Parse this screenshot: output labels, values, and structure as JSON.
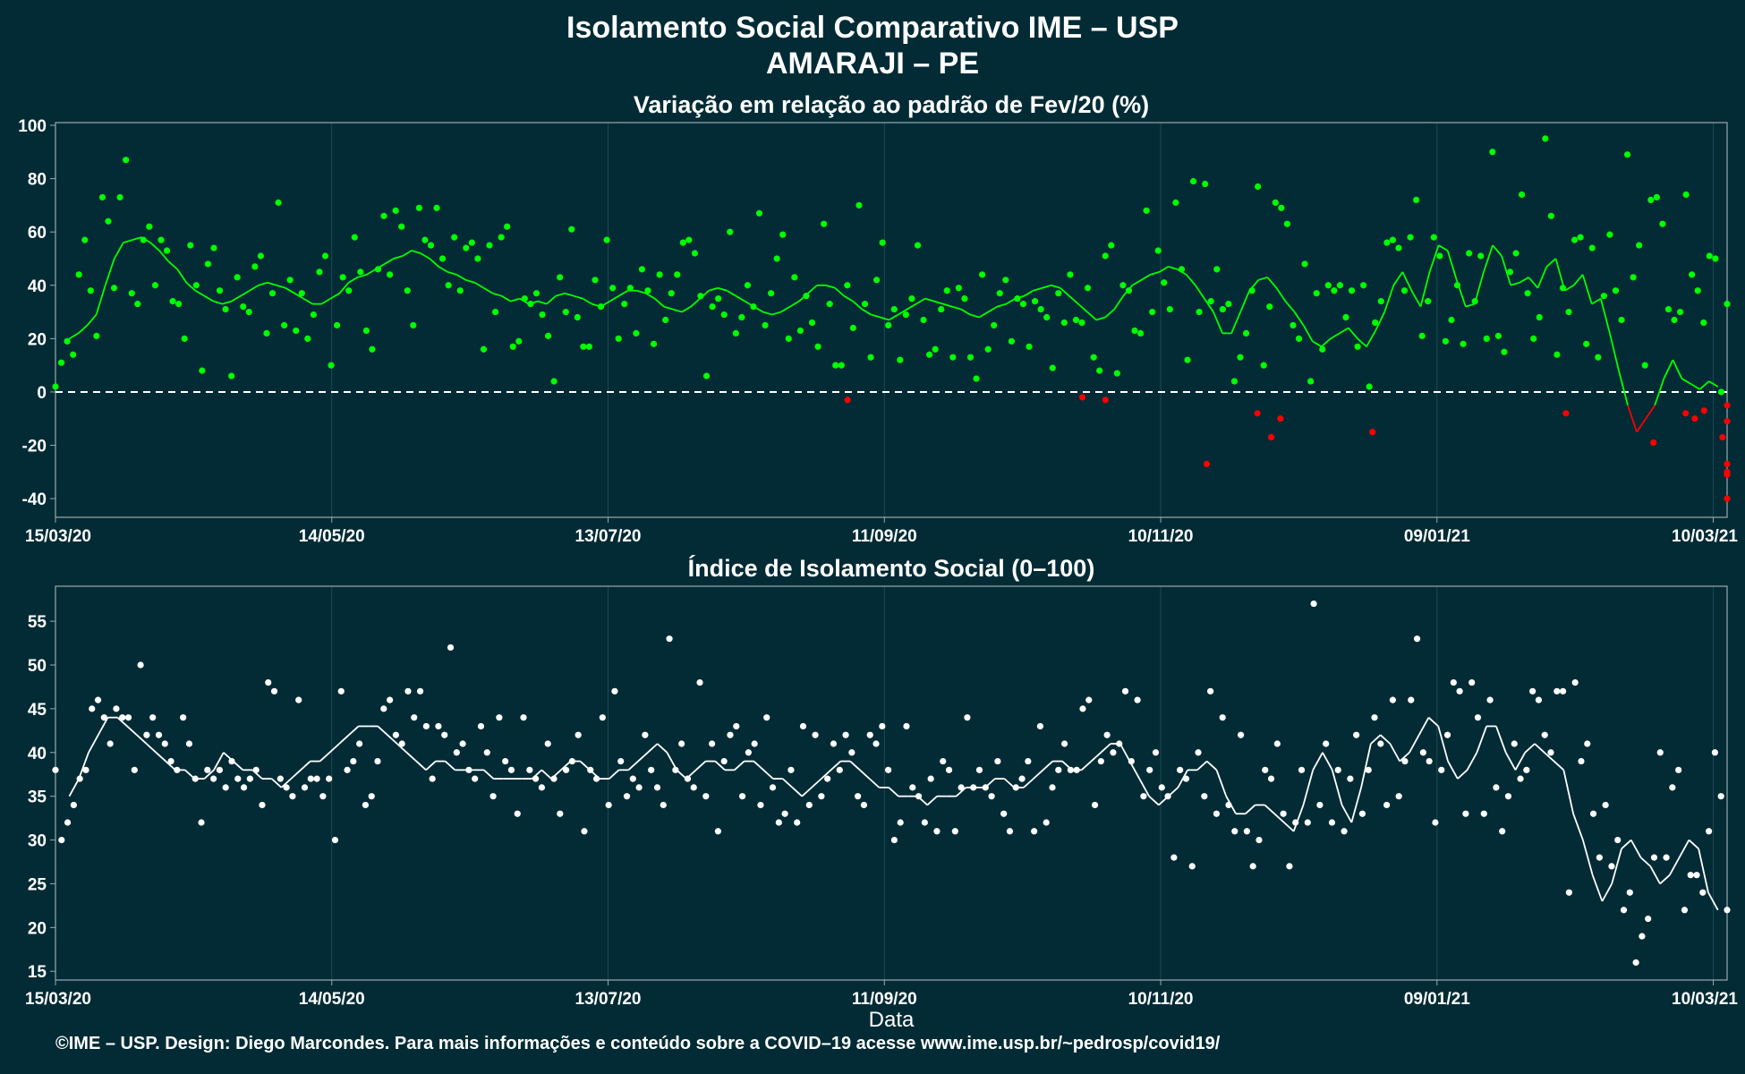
{
  "title_line1": "Isolamento Social Comparativo IME – USP",
  "title_line2": "AMARAJI – PE",
  "footer": "©IME – USP. Design: Diego Marcondes. Para mais informações e conteúdo sobre a COVID–19 acesse www.ime.usp.br/~pedrosp/covid19/",
  "colors": {
    "background": "#022b35",
    "positive": "#00ff00",
    "negative": "#ff0000",
    "neutral": "#ffffff",
    "grid": "#1f4a52",
    "frame": "#9aaaad"
  },
  "chart_data": [
    {
      "type": "scatter",
      "title": "Variação em relação ao padrão de Fev/20 (%)",
      "xlabel": "",
      "ylabel": "",
      "x_ticks": [
        "15/03/20",
        "14/05/20",
        "13/07/20",
        "11/09/20",
        "10/11/20",
        "09/01/21",
        "10/03/21"
      ],
      "x_range": [
        "15/03/20",
        "13/03/21"
      ],
      "ylim": [
        -47,
        101
      ],
      "y_ticks": [
        -40,
        -20,
        0,
        20,
        40,
        60,
        80,
        100
      ],
      "reference_line": 0,
      "grid": true,
      "series": [
        {
          "kind": "points",
          "values": [
            2,
            11,
            19,
            14,
            44,
            57,
            38,
            21,
            73,
            64,
            39,
            73,
            87,
            37,
            33,
            57,
            62,
            40,
            57,
            53,
            34,
            33,
            20,
            55,
            40,
            8,
            48,
            54,
            38,
            31,
            6,
            43,
            32,
            30,
            47,
            51,
            22,
            37,
            71,
            25,
            42,
            23,
            37,
            20,
            29,
            45,
            51,
            10,
            25,
            43,
            38,
            58,
            45,
            23,
            16,
            46,
            66,
            44,
            68,
            62,
            38,
            25,
            69,
            57,
            55,
            69,
            50,
            40,
            58,
            38,
            54,
            56,
            50,
            16,
            55,
            30,
            58,
            62,
            17,
            19,
            35,
            33,
            37,
            29,
            21,
            4,
            43,
            30,
            61,
            28,
            17,
            17,
            42,
            32,
            57,
            39,
            20,
            33,
            39,
            22,
            46,
            38,
            18,
            44,
            27,
            37,
            44,
            56,
            57,
            52,
            36,
            6,
            32,
            35,
            29,
            60,
            22,
            28,
            40,
            32,
            67,
            25,
            37,
            50,
            59,
            20,
            43,
            23,
            36,
            26,
            17,
            63,
            33,
            10,
            10,
            40,
            24,
            70,
            33,
            13,
            42,
            56,
            25,
            31,
            12,
            29,
            35,
            55,
            27,
            14,
            16,
            31,
            38,
            13,
            39,
            35,
            13,
            5,
            44,
            16,
            25,
            37,
            42,
            19,
            35,
            33,
            17,
            34,
            31,
            28,
            9,
            37,
            26,
            44,
            27,
            26,
            39,
            13,
            8,
            51,
            55,
            7,
            40,
            38,
            23,
            22,
            68,
            30,
            53,
            41,
            31,
            71,
            46,
            12,
            79,
            30,
            78,
            34,
            46,
            31,
            33,
            4,
            13,
            22,
            38,
            77,
            10,
            32,
            71,
            69,
            63,
            25,
            20,
            48,
            4,
            37,
            16,
            40,
            38,
            40,
            28,
            38,
            17,
            40,
            2,
            26,
            34,
            56,
            57,
            54,
            38,
            58,
            72,
            21,
            34,
            58,
            51,
            19,
            27,
            40,
            18,
            52,
            34,
            51,
            20,
            90,
            21,
            15,
            45,
            52,
            74,
            37,
            20,
            28,
            95,
            66,
            14,
            39,
            30,
            57,
            58,
            18,
            54,
            13,
            36,
            59,
            38,
            27,
            89,
            43,
            55,
            10,
            72,
            73,
            63,
            31,
            27,
            30,
            74,
            44,
            38,
            26,
            51,
            50,
            0,
            33
          ],
          "negatives": [
            -3,
            -2,
            -3,
            -27,
            -8,
            -17,
            -10,
            -15,
            -8,
            -19,
            -8,
            -10,
            -7,
            -30,
            -40,
            -31,
            -31,
            -27,
            -11,
            -5,
            -17
          ]
        },
        {
          "kind": "moving_average",
          "values": [
            20,
            22,
            25,
            29,
            40,
            50,
            56,
            57,
            58,
            56,
            53,
            49,
            46,
            41,
            38,
            36,
            34,
            33,
            34,
            36,
            38,
            40,
            41,
            40,
            39,
            37,
            35,
            33,
            33,
            35,
            37,
            41,
            43,
            44,
            46,
            48,
            50,
            51,
            53,
            52,
            50,
            47,
            45,
            44,
            42,
            41,
            39,
            37,
            36,
            34,
            35,
            33,
            34,
            33,
            36,
            37,
            36,
            35,
            33,
            32,
            34,
            36,
            38,
            38,
            37,
            35,
            32,
            31,
            30,
            32,
            35,
            38,
            39,
            38,
            36,
            34,
            32,
            30,
            29,
            30,
            32,
            34,
            37,
            40,
            40,
            39,
            36,
            34,
            31,
            29,
            28,
            27,
            29,
            31,
            33,
            35,
            34,
            33,
            32,
            31,
            29,
            28,
            30,
            32,
            33,
            35,
            36,
            38,
            39,
            40,
            39,
            36,
            33,
            30,
            27,
            28,
            31,
            36,
            40,
            42,
            44,
            45,
            47,
            46,
            44,
            40,
            35,
            30,
            22,
            22,
            30,
            38,
            42,
            43,
            39,
            34,
            30,
            25,
            19,
            17,
            20,
            22,
            24,
            20,
            17,
            23,
            30,
            40,
            45,
            38,
            32,
            45,
            55,
            53,
            42,
            32,
            33,
            45,
            55,
            51,
            40,
            41,
            43,
            39,
            47,
            50,
            38,
            40,
            44,
            33,
            35,
            22,
            8,
            -5,
            -15,
            -10,
            -5,
            5,
            12,
            5,
            3,
            1,
            4,
            2
          ]
        }
      ]
    },
    {
      "type": "scatter",
      "title": "Índice de Isolamento Social (0–100)",
      "xlabel": "Data",
      "ylabel": "",
      "x_ticks": [
        "15/03/20",
        "14/05/20",
        "13/07/20",
        "11/09/20",
        "10/11/20",
        "09/01/21",
        "10/03/21"
      ],
      "x_range": [
        "15/03/20",
        "13/03/21"
      ],
      "ylim": [
        14,
        59
      ],
      "y_ticks": [
        15,
        20,
        25,
        30,
        35,
        40,
        45,
        50,
        55
      ],
      "grid": true,
      "series": [
        {
          "kind": "points",
          "values": [
            38,
            30,
            32,
            34,
            37,
            38,
            45,
            46,
            44,
            41,
            45,
            44,
            44,
            38,
            50,
            42,
            44,
            42,
            41,
            39,
            38,
            44,
            41,
            37,
            32,
            38,
            37,
            38,
            36,
            39,
            37,
            36,
            37,
            38,
            34,
            48,
            47,
            37,
            36,
            35,
            46,
            36,
            37,
            37,
            35,
            37,
            30,
            47,
            38,
            39,
            41,
            34,
            35,
            39,
            45,
            46,
            42,
            41,
            47,
            44,
            47,
            43,
            37,
            43,
            42,
            52,
            40,
            41,
            38,
            37,
            43,
            40,
            35,
            44,
            39,
            38,
            33,
            44,
            38,
            37,
            36,
            41,
            37,
            33,
            38,
            39,
            42,
            31,
            38,
            37,
            44,
            34,
            47,
            39,
            35,
            37,
            36,
            42,
            38,
            36,
            34,
            53,
            38,
            41,
            37,
            36,
            48,
            35,
            41,
            31,
            39,
            42,
            43,
            35,
            40,
            41,
            34,
            44,
            36,
            32,
            33,
            38,
            32,
            43,
            34,
            42,
            35,
            37,
            41,
            38,
            42,
            40,
            35,
            34,
            42,
            41,
            43,
            38,
            30,
            32,
            43,
            36,
            35,
            32,
            37,
            31,
            39,
            38,
            31,
            36,
            44,
            36,
            38,
            36,
            35,
            39,
            33,
            31,
            36,
            37,
            39,
            31,
            43,
            32,
            36,
            38,
            41,
            38,
            38,
            45,
            46,
            34,
            39,
            42,
            40,
            41,
            47,
            39,
            46,
            35,
            38,
            40,
            36,
            35,
            28,
            38,
            37,
            27,
            40,
            35,
            47,
            33,
            44,
            34,
            31,
            42,
            31,
            27,
            30,
            38,
            37,
            41,
            33,
            27,
            32,
            38,
            32,
            57,
            34,
            41,
            32,
            38,
            31,
            37,
            42,
            33,
            38,
            44,
            41,
            34,
            46,
            35,
            39,
            46,
            53,
            40,
            39,
            32,
            38,
            42,
            48,
            47,
            33,
            48,
            44,
            33,
            46,
            36,
            31,
            35,
            41,
            37,
            38,
            47,
            46,
            42,
            40,
            47,
            47,
            24,
            48,
            39,
            41,
            33,
            28,
            34,
            27,
            30,
            22,
            24,
            16,
            19,
            21,
            28,
            40,
            28,
            36,
            38,
            22,
            26,
            26,
            24,
            31,
            40,
            35,
            22
          ]
        },
        {
          "kind": "moving_average",
          "values": [
            35,
            37,
            40,
            42,
            44,
            44,
            43,
            42,
            41,
            40,
            39,
            38,
            38,
            37,
            37,
            38,
            40,
            39,
            38,
            38,
            37,
            37,
            36,
            37,
            38,
            39,
            39,
            40,
            41,
            42,
            43,
            43,
            43,
            42,
            41,
            40,
            39,
            38,
            39,
            39,
            38,
            38,
            38,
            38,
            37,
            37,
            37,
            37,
            37,
            38,
            37,
            38,
            39,
            39,
            38,
            37,
            37,
            38,
            38,
            39,
            40,
            41,
            40,
            38,
            37,
            38,
            39,
            39,
            38,
            38,
            39,
            39,
            38,
            37,
            37,
            36,
            35,
            36,
            37,
            38,
            39,
            39,
            38,
            37,
            36,
            36,
            35,
            35,
            35,
            34,
            35,
            35,
            35,
            36,
            36,
            36,
            37,
            37,
            36,
            36,
            37,
            38,
            39,
            39,
            38,
            38,
            39,
            40,
            41,
            41,
            39,
            37,
            35,
            34,
            35,
            36,
            38,
            38,
            39,
            38,
            35,
            33,
            33,
            34,
            34,
            33,
            32,
            31,
            34,
            38,
            40,
            38,
            34,
            32,
            36,
            41,
            42,
            41,
            39,
            40,
            42,
            44,
            43,
            39,
            37,
            38,
            40,
            43,
            43,
            40,
            38,
            40,
            41,
            40,
            39,
            38,
            33,
            30,
            26,
            23,
            25,
            29,
            30,
            28,
            27,
            25,
            26,
            28,
            30,
            29,
            24,
            22
          ]
        }
      ]
    }
  ]
}
